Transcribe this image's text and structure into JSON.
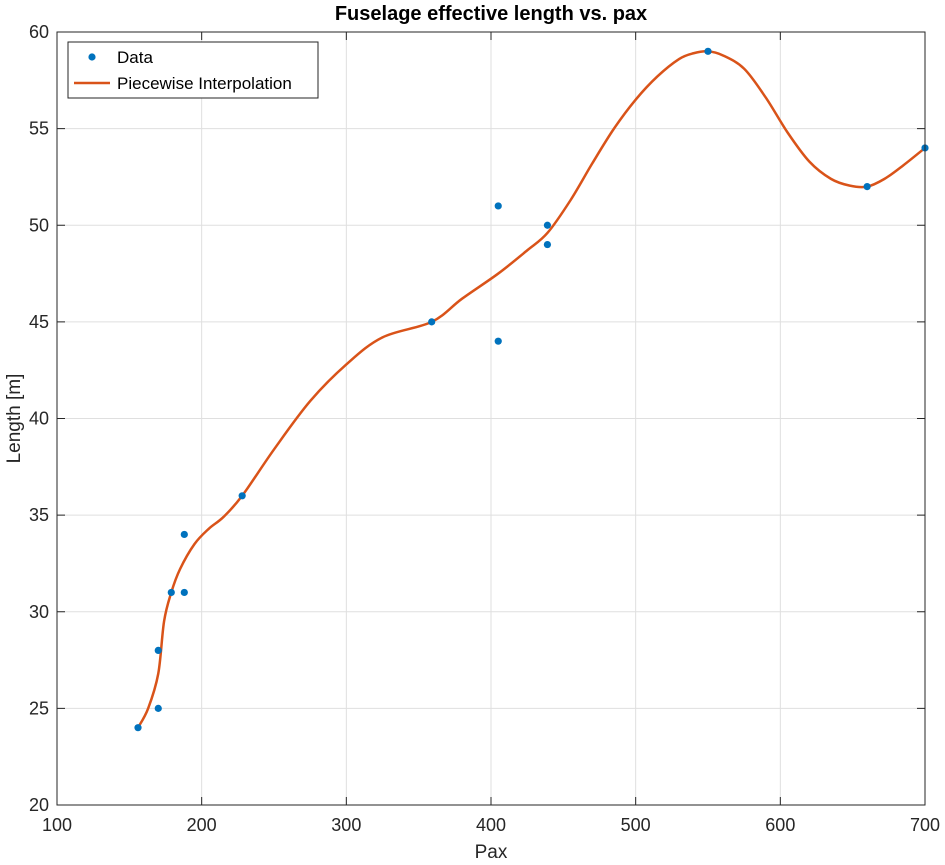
{
  "chart_data": {
    "type": "scatter",
    "title": "Fuselage effective length vs. pax",
    "xlabel": "Pax",
    "ylabel": "Length [m]",
    "xlim": [
      100,
      700
    ],
    "ylim": [
      20,
      60
    ],
    "xticks": [
      100,
      200,
      300,
      400,
      500,
      600,
      700
    ],
    "yticks": [
      20,
      25,
      30,
      35,
      40,
      45,
      50,
      55,
      60
    ],
    "grid": true,
    "legend_position": "top-left",
    "series": [
      {
        "name": "Data",
        "mode": "markers",
        "color": "#0072BD",
        "x": [
          156,
          170,
          170,
          179,
          188,
          188,
          228,
          359,
          405,
          405,
          439,
          439,
          550,
          660,
          700
        ],
        "y": [
          24,
          25,
          28,
          31,
          31,
          34,
          36,
          45,
          44,
          51,
          49,
          50,
          59,
          52,
          54
        ]
      },
      {
        "name": "Piecewise Interpolation",
        "mode": "line",
        "color": "#D95319",
        "x": [
          156,
          163,
          170,
          174,
          179,
          185,
          195,
          205,
          215,
          228,
          250,
          275,
          300,
          325,
          359,
          380,
          405,
          425,
          439,
          455,
          470,
          485,
          500,
          515,
          530,
          540,
          550,
          560,
          575,
          590,
          605,
          620,
          635,
          648,
          660,
          672,
          685,
          700
        ],
        "y": [
          24,
          25,
          26.8,
          29.5,
          31,
          32.2,
          33.5,
          34.3,
          34.9,
          36,
          38.4,
          40.9,
          42.8,
          44.2,
          45,
          46.2,
          47.5,
          48.7,
          49.6,
          51.3,
          53.2,
          55,
          56.5,
          57.7,
          58.6,
          58.9,
          59,
          58.8,
          58.1,
          56.6,
          54.8,
          53.3,
          52.4,
          52.05,
          52,
          52.4,
          53.1,
          54
        ]
      }
    ]
  }
}
